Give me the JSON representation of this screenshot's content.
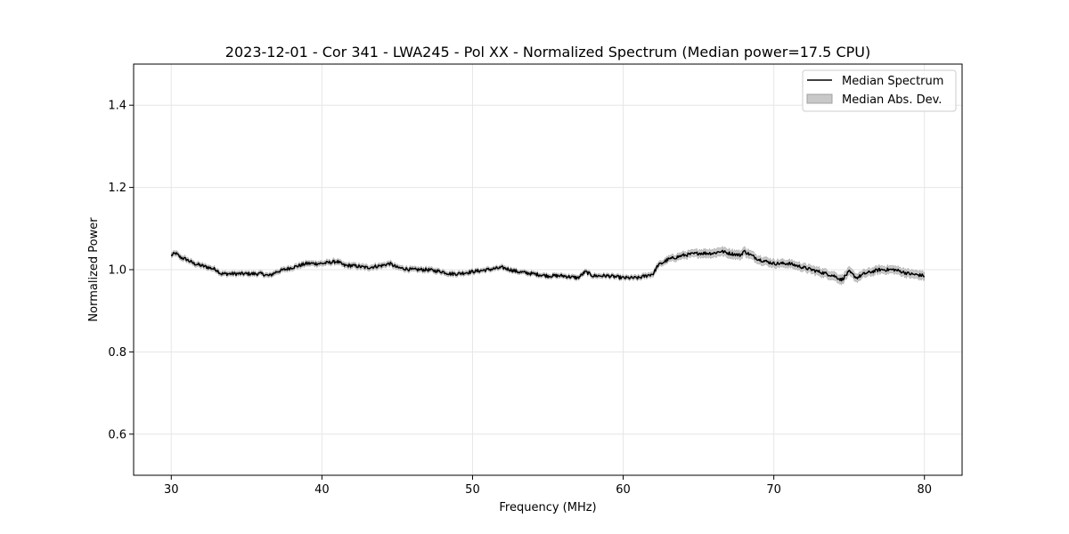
{
  "chart_data": {
    "type": "line",
    "title": "2023-12-01 - Cor 341 - LWA245 - Pol XX - Normalized Spectrum (Median power=17.5 CPU)",
    "xlabel": "Frequency (MHz)",
    "ylabel": "Normalized Power",
    "xlim": [
      27.5,
      82.5
    ],
    "ylim": [
      0.5,
      1.5
    ],
    "xticks": [
      30,
      40,
      50,
      60,
      70,
      80
    ],
    "xtick_labels": [
      "30",
      "40",
      "50",
      "60",
      "70",
      "80"
    ],
    "yticks": [
      0.6,
      0.8,
      1.0,
      1.2,
      1.4
    ],
    "ytick_labels": [
      "0.6",
      "0.8",
      "1.0",
      "1.2",
      "1.4"
    ],
    "grid": true,
    "legend": {
      "position": "top-right",
      "entries": [
        "Median Spectrum",
        "Median Abs. Dev."
      ]
    },
    "series": [
      {
        "name": "Median Spectrum",
        "color": "#000000",
        "x": [
          30,
          30.3,
          30.6,
          31,
          31.5,
          32,
          32.5,
          33,
          33.3,
          34,
          35,
          36,
          36.5,
          37,
          37.5,
          38,
          39,
          40,
          41,
          41.5,
          42,
          43,
          44,
          44.5,
          45,
          46,
          47,
          48,
          48.5,
          49,
          50,
          51,
          52,
          53,
          54,
          55,
          56,
          57,
          57.5,
          58,
          59,
          60,
          61,
          62,
          62.3,
          63,
          64,
          65,
          66,
          66.5,
          67,
          67.8,
          68,
          69,
          70,
          71,
          72,
          73,
          74,
          74.5,
          75,
          75.5,
          76,
          77,
          78,
          79,
          80
        ],
        "y": [
          1.035,
          1.04,
          1.03,
          1.025,
          1.015,
          1.01,
          1.005,
          1.0,
          0.99,
          0.99,
          0.99,
          0.99,
          0.985,
          0.995,
          1.0,
          1.005,
          1.015,
          1.015,
          1.02,
          1.01,
          1.01,
          1.005,
          1.01,
          1.015,
          1.005,
          1.0,
          1.0,
          0.995,
          0.99,
          0.99,
          0.995,
          1.0,
          1.005,
          0.995,
          0.99,
          0.985,
          0.985,
          0.98,
          0.995,
          0.985,
          0.985,
          0.98,
          0.98,
          0.99,
          1.01,
          1.025,
          1.035,
          1.04,
          1.04,
          1.045,
          1.04,
          1.035,
          1.045,
          1.025,
          1.015,
          1.015,
          1.005,
          0.995,
          0.985,
          0.975,
          0.995,
          0.98,
          0.99,
          1.0,
          1.0,
          0.99,
          0.985
        ]
      },
      {
        "name": "Median Abs. Dev.",
        "color": "#c8c8c8",
        "x": [
          30,
          35,
          40,
          45,
          50,
          55,
          60,
          62,
          64,
          66,
          68,
          70,
          72,
          74,
          75,
          76,
          78,
          80
        ],
        "dev": [
          0.006,
          0.005,
          0.006,
          0.006,
          0.005,
          0.005,
          0.005,
          0.006,
          0.008,
          0.01,
          0.01,
          0.009,
          0.009,
          0.01,
          0.01,
          0.009,
          0.009,
          0.01
        ]
      }
    ]
  }
}
